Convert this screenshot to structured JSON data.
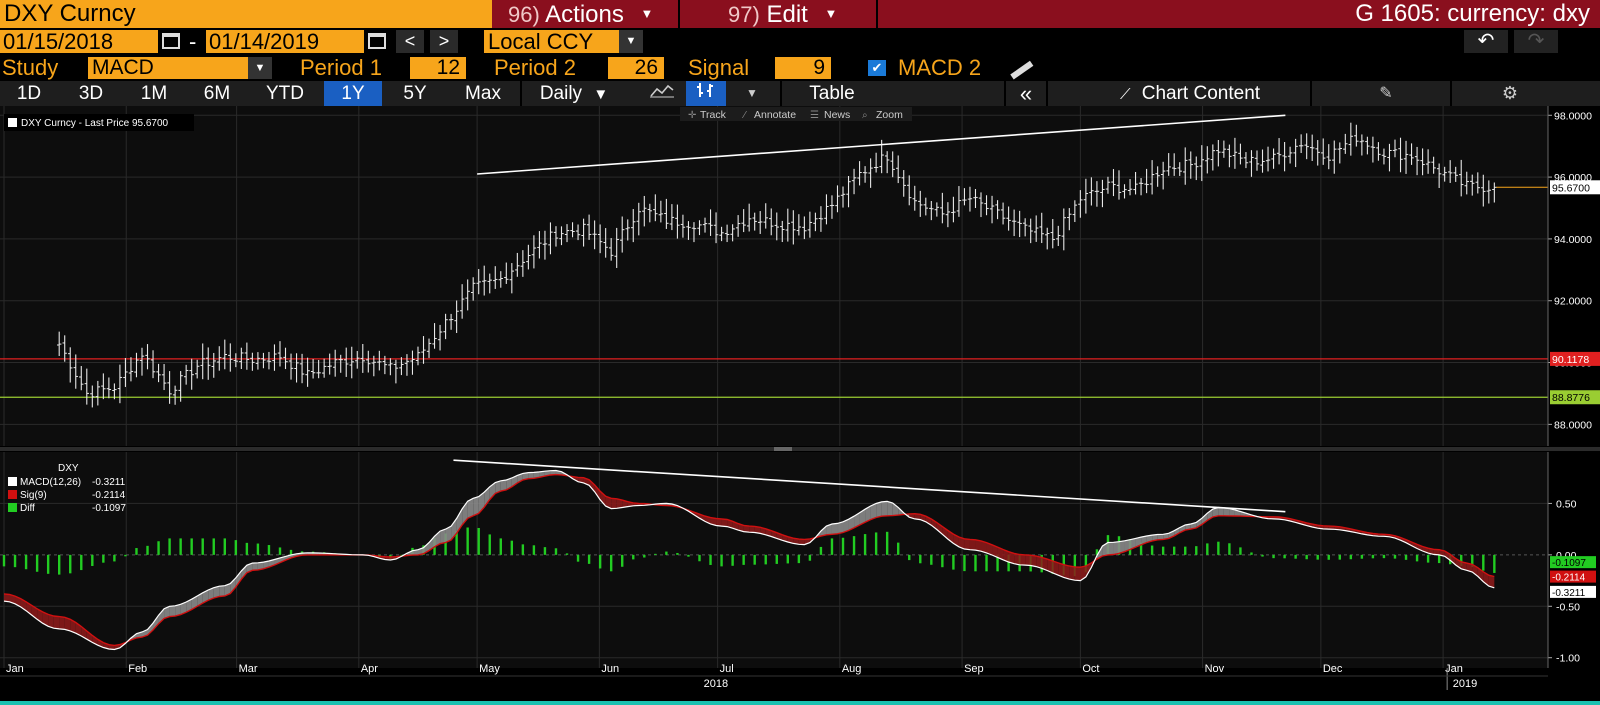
{
  "header": {
    "ticker": "DXY Curncy",
    "actions_num": "96)",
    "actions_label": "Actions",
    "edit_num": "97)",
    "edit_label": "Edit",
    "function_title": "G 1605: currency: dxy"
  },
  "dates": {
    "start": "01/15/2018",
    "separator": "-",
    "end": "01/14/2019",
    "prev": "<",
    "next": ">",
    "currency": "Local CCY"
  },
  "study": {
    "label": "Study",
    "value": "MACD",
    "period1_label": "Period 1",
    "period1_value": "12",
    "period2_label": "Period 2",
    "period2_value": "26",
    "signal_label": "Signal",
    "signal_value": "9",
    "macd2_label": "MACD 2"
  },
  "toolbar": {
    "ranges": [
      "1D",
      "3D",
      "1M",
      "6M",
      "YTD",
      "1Y",
      "5Y",
      "Max"
    ],
    "active_range": "1Y",
    "frequency": "Daily",
    "table_label": "Table",
    "chart_content_label": "Chart Content",
    "chart_tools": [
      "Track",
      "Annotate",
      "News",
      "Zoom"
    ]
  },
  "colors": {
    "accent_orange": "#f7a51b",
    "header_red": "#8a0f1e",
    "active_blue": "#1a5fc2",
    "macd_line": "#ffffff",
    "signal_line": "#d01010",
    "diff_bar": "#22cc22",
    "hline_red": "#e02020",
    "hline_green": "#9acd32"
  },
  "chart_data": [
    {
      "type": "ohlc",
      "legend": "DXY Curncy - Last Price 95.6700",
      "last_price": "95.6700",
      "ylim": [
        87.3,
        98.3
      ],
      "yticks": [
        "98.0000",
        "96.0000",
        "94.0000",
        "92.0000",
        "90.0000",
        "88.0000"
      ],
      "grid": true,
      "hlines": [
        {
          "value": 90.1178,
          "label": "90.1178",
          "color": "#e02020"
        },
        {
          "value": 88.8776,
          "label": "88.8776",
          "color": "#9acd32"
        }
      ],
      "trendline": {
        "from": [
          "2018-05-01",
          96.1
        ],
        "to": [
          "2018-11-22",
          98.0
        ]
      },
      "weekly_close": [
        [
          "2018-01-15",
          90.6
        ],
        [
          "2018-01-22",
          89.0
        ],
        [
          "2018-01-29",
          89.2
        ],
        [
          "2018-02-05",
          90.3
        ],
        [
          "2018-02-12",
          89.1
        ],
        [
          "2018-02-19",
          89.9
        ],
        [
          "2018-02-26",
          90.2
        ],
        [
          "2018-03-05",
          90.1
        ],
        [
          "2018-03-12",
          90.2
        ],
        [
          "2018-03-19",
          89.6
        ],
        [
          "2018-03-26",
          90.0
        ],
        [
          "2018-04-02",
          90.2
        ],
        [
          "2018-04-09",
          89.8
        ],
        [
          "2018-04-16",
          90.2
        ],
        [
          "2018-04-23",
          91.3
        ],
        [
          "2018-04-30",
          92.4
        ],
        [
          "2018-05-07",
          92.7
        ],
        [
          "2018-05-14",
          93.5
        ],
        [
          "2018-05-21",
          94.2
        ],
        [
          "2018-05-28",
          94.3
        ],
        [
          "2018-06-04",
          93.6
        ],
        [
          "2018-06-11",
          95.0
        ],
        [
          "2018-06-18",
          94.6
        ],
        [
          "2018-06-25",
          94.5
        ],
        [
          "2018-07-02",
          94.2
        ],
        [
          "2018-07-09",
          94.7
        ],
        [
          "2018-07-16",
          94.5
        ],
        [
          "2018-07-23",
          94.4
        ],
        [
          "2018-07-30",
          95.1
        ],
        [
          "2018-08-06",
          96.1
        ],
        [
          "2018-08-13",
          96.7
        ],
        [
          "2018-08-20",
          95.2
        ],
        [
          "2018-08-27",
          94.8
        ],
        [
          "2018-09-03",
          95.3
        ],
        [
          "2018-09-10",
          94.8
        ],
        [
          "2018-09-17",
          94.3
        ],
        [
          "2018-09-24",
          94.0
        ],
        [
          "2018-10-01",
          95.3
        ],
        [
          "2018-10-08",
          95.7
        ],
        [
          "2018-10-15",
          95.6
        ],
        [
          "2018-10-22",
          96.3
        ],
        [
          "2018-10-29",
          96.4
        ],
        [
          "2018-11-05",
          96.9
        ],
        [
          "2018-11-12",
          96.5
        ],
        [
          "2018-11-19",
          96.6
        ],
        [
          "2018-11-26",
          97.1
        ],
        [
          "2018-12-03",
          96.7
        ],
        [
          "2018-12-10",
          97.3
        ],
        [
          "2018-12-17",
          96.8
        ],
        [
          "2018-12-24",
          96.7
        ],
        [
          "2018-12-31",
          96.2
        ],
        [
          "2019-01-07",
          95.7
        ],
        [
          "2019-01-14",
          95.67
        ]
      ]
    },
    {
      "type": "macd",
      "title": "DXY",
      "legend": [
        {
          "name": "MACD(12,26)",
          "value": "-0.3211",
          "color": "#ffffff"
        },
        {
          "name": "Sig(9)",
          "value": "-0.2114",
          "color": "#d01010"
        },
        {
          "name": "Diff",
          "value": "-0.1097",
          "color": "#22cc22"
        }
      ],
      "ylim": [
        -1.1,
        1.0
      ],
      "yticks": [
        "0.50",
        "0.00",
        "-0.50",
        "-1.00"
      ],
      "last_labels": [
        "-0.1097",
        "-0.2114",
        "-0.3211"
      ],
      "trendline": {
        "from": [
          "2018-04-25",
          0.92
        ],
        "to": [
          "2018-11-22",
          0.42
        ]
      },
      "macd_points": [
        [
          "2018-01-01",
          -0.45
        ],
        [
          "2018-01-15",
          -0.72
        ],
        [
          "2018-01-29",
          -0.92
        ],
        [
          "2018-02-05",
          -0.75
        ],
        [
          "2018-02-12",
          -0.5
        ],
        [
          "2018-02-26",
          -0.3
        ],
        [
          "2018-03-05",
          -0.08
        ],
        [
          "2018-03-19",
          0.02
        ],
        [
          "2018-04-02",
          0.0
        ],
        [
          "2018-04-09",
          -0.05
        ],
        [
          "2018-04-16",
          0.05
        ],
        [
          "2018-04-23",
          0.25
        ],
        [
          "2018-04-30",
          0.55
        ],
        [
          "2018-05-07",
          0.72
        ],
        [
          "2018-05-14",
          0.8
        ],
        [
          "2018-05-21",
          0.82
        ],
        [
          "2018-05-28",
          0.7
        ],
        [
          "2018-06-04",
          0.45
        ],
        [
          "2018-06-11",
          0.48
        ],
        [
          "2018-06-18",
          0.5
        ],
        [
          "2018-07-02",
          0.28
        ],
        [
          "2018-07-09",
          0.22
        ],
        [
          "2018-07-23",
          0.1
        ],
        [
          "2018-07-30",
          0.3
        ],
        [
          "2018-08-13",
          0.52
        ],
        [
          "2018-08-20",
          0.35
        ],
        [
          "2018-09-03",
          0.05
        ],
        [
          "2018-09-17",
          -0.1
        ],
        [
          "2018-10-01",
          -0.25
        ],
        [
          "2018-10-08",
          0.12
        ],
        [
          "2018-10-22",
          0.2
        ],
        [
          "2018-10-29",
          0.3
        ],
        [
          "2018-11-05",
          0.46
        ],
        [
          "2018-11-19",
          0.35
        ],
        [
          "2018-12-03",
          0.25
        ],
        [
          "2018-12-17",
          0.18
        ],
        [
          "2018-12-31",
          0.0
        ],
        [
          "2019-01-07",
          -0.15
        ],
        [
          "2019-01-14",
          -0.32
        ]
      ],
      "signal_points": [
        [
          "2018-01-01",
          -0.38
        ],
        [
          "2018-01-15",
          -0.6
        ],
        [
          "2018-01-29",
          -0.88
        ],
        [
          "2018-02-05",
          -0.8
        ],
        [
          "2018-02-12",
          -0.6
        ],
        [
          "2018-02-26",
          -0.4
        ],
        [
          "2018-03-05",
          -0.15
        ],
        [
          "2018-03-19",
          0.0
        ],
        [
          "2018-04-02",
          0.0
        ],
        [
          "2018-04-09",
          -0.02
        ],
        [
          "2018-04-16",
          0.0
        ],
        [
          "2018-04-23",
          0.12
        ],
        [
          "2018-04-30",
          0.38
        ],
        [
          "2018-05-07",
          0.62
        ],
        [
          "2018-05-14",
          0.74
        ],
        [
          "2018-05-21",
          0.78
        ],
        [
          "2018-05-28",
          0.75
        ],
        [
          "2018-06-04",
          0.55
        ],
        [
          "2018-06-11",
          0.5
        ],
        [
          "2018-06-18",
          0.48
        ],
        [
          "2018-07-02",
          0.35
        ],
        [
          "2018-07-09",
          0.28
        ],
        [
          "2018-07-23",
          0.15
        ],
        [
          "2018-07-30",
          0.2
        ],
        [
          "2018-08-13",
          0.38
        ],
        [
          "2018-08-20",
          0.4
        ],
        [
          "2018-09-03",
          0.15
        ],
        [
          "2018-09-17",
          0.0
        ],
        [
          "2018-10-01",
          -0.12
        ],
        [
          "2018-10-08",
          0.0
        ],
        [
          "2018-10-22",
          0.15
        ],
        [
          "2018-10-29",
          0.25
        ],
        [
          "2018-11-05",
          0.38
        ],
        [
          "2018-11-19",
          0.37
        ],
        [
          "2018-12-03",
          0.28
        ],
        [
          "2018-12-17",
          0.2
        ],
        [
          "2018-12-31",
          0.05
        ],
        [
          "2019-01-07",
          -0.08
        ],
        [
          "2019-01-14",
          -0.21
        ]
      ]
    }
  ],
  "xaxis": {
    "months": [
      {
        "label": "Jan",
        "date": "2018-01-01"
      },
      {
        "label": "Feb",
        "date": "2018-02-01"
      },
      {
        "label": "Mar",
        "date": "2018-03-01"
      },
      {
        "label": "Apr",
        "date": "2018-04-01"
      },
      {
        "label": "May",
        "date": "2018-05-01"
      },
      {
        "label": "Jun",
        "date": "2018-06-01"
      },
      {
        "label": "Jul",
        "date": "2018-07-01"
      },
      {
        "label": "Aug",
        "date": "2018-08-01"
      },
      {
        "label": "Sep",
        "date": "2018-09-01"
      },
      {
        "label": "Oct",
        "date": "2018-10-01"
      },
      {
        "label": "Nov",
        "date": "2018-11-01"
      },
      {
        "label": "Dec",
        "date": "2018-12-01"
      },
      {
        "label": "Jan",
        "date": "2019-01-01"
      }
    ],
    "year_labels": [
      {
        "label": "2018",
        "date": "2018-07-01"
      },
      {
        "label": "2019",
        "date": "2019-01-07"
      }
    ]
  }
}
